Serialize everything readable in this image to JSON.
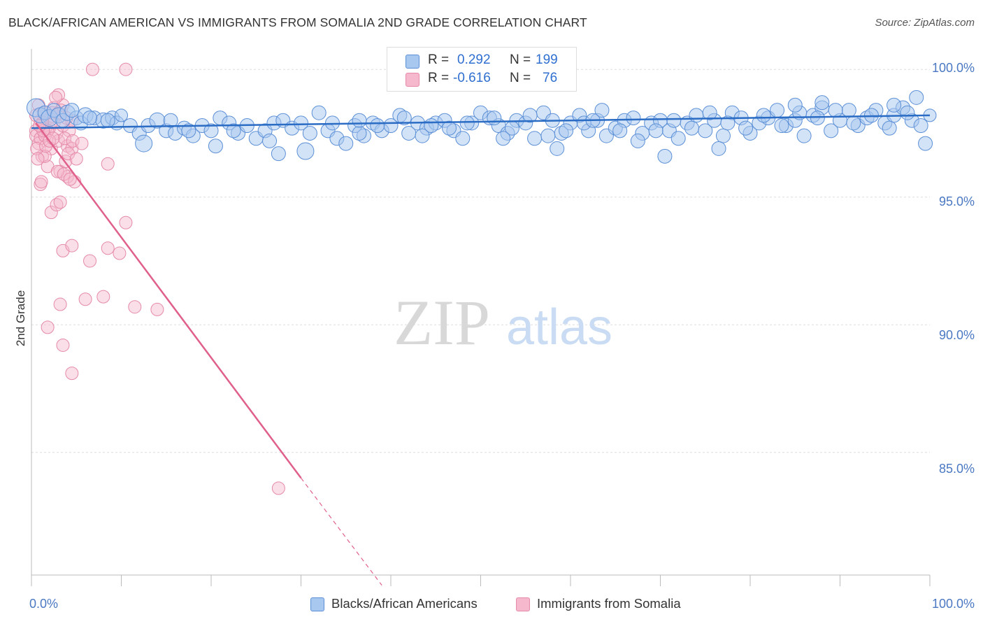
{
  "title": "BLACK/AFRICAN AMERICAN VS IMMIGRANTS FROM SOMALIA 2ND GRADE CORRELATION CHART",
  "source": "Source: ZipAtlas.com",
  "watermark": {
    "zip": "ZIP",
    "atlas": "atlas"
  },
  "colors": {
    "blue_fill": "#a8c8f0",
    "blue_stroke": "#5b8fd6",
    "blue_line": "#2b6cc4",
    "pink_fill": "#f5b8cc",
    "pink_stroke": "#e58aa8",
    "pink_line": "#e0608c",
    "axis_label": "#4a78c2",
    "grid": "#dddddd"
  },
  "stats": {
    "row1": {
      "r_label": "R =",
      "r_value": "0.292",
      "n_label": "N =",
      "n_value": "199"
    },
    "row2": {
      "r_label": "R =",
      "r_value": "-0.616",
      "n_label": "N =",
      "n_value": "76"
    }
  },
  "legend": {
    "series1": "Blacks/African Americans",
    "series2": "Immigrants from Somalia"
  },
  "chart_data": {
    "type": "scatter",
    "title": "BLACK/AFRICAN AMERICAN VS IMMIGRANTS FROM SOMALIA 2ND GRADE CORRELATION CHART",
    "xlabel": "",
    "ylabel": "2nd Grade",
    "xlim": [
      0,
      100
    ],
    "ylim": [
      80.2,
      100.8
    ],
    "x_tick_labels": [
      "0.0%",
      "100.0%"
    ],
    "y_ticks": [
      85,
      90,
      95,
      100
    ],
    "y_tick_labels": [
      "85.0%",
      "90.0%",
      "95.0%",
      "100.0%"
    ],
    "grid": true,
    "series": [
      {
        "name": "Blacks/African Americans",
        "color": "#5b8fd6",
        "trend": {
          "x": [
            0,
            100
          ],
          "y": [
            97.7,
            98.2
          ]
        },
        "points": [
          [
            0.5,
            98.5,
            13
          ],
          [
            1,
            98.2,
            11
          ],
          [
            1.5,
            98.3,
            10
          ],
          [
            2,
            98.1,
            12
          ],
          [
            2.5,
            98.4,
            10
          ],
          [
            3,
            98.2,
            11
          ],
          [
            3.5,
            98.0,
            10
          ],
          [
            4,
            98.3,
            11
          ],
          [
            5,
            98.1,
            10
          ],
          [
            5.5,
            97.9,
            10
          ],
          [
            6,
            98.2,
            11
          ],
          [
            7,
            98.1,
            10
          ],
          [
            8,
            98.0,
            11
          ],
          [
            9,
            98.1,
            10
          ],
          [
            9.5,
            97.9,
            10
          ],
          [
            10,
            98.2,
            9
          ],
          [
            11,
            97.8,
            10
          ],
          [
            12,
            97.5,
            10
          ],
          [
            13,
            97.8,
            10
          ],
          [
            14,
            98.0,
            11
          ],
          [
            15,
            97.6,
            10
          ],
          [
            16,
            97.5,
            10
          ],
          [
            17,
            97.7,
            10
          ],
          [
            18,
            97.4,
            10
          ],
          [
            19,
            97.8,
            10
          ],
          [
            20,
            97.6,
            10
          ],
          [
            21,
            98.1,
            10
          ],
          [
            22,
            97.9,
            10
          ],
          [
            23,
            97.5,
            10
          ],
          [
            24,
            97.8,
            10
          ],
          [
            25,
            97.3,
            10
          ],
          [
            26,
            97.6,
            10
          ],
          [
            27,
            97.9,
            10
          ],
          [
            28,
            98.0,
            10
          ],
          [
            29,
            97.7,
            10
          ],
          [
            30,
            97.9,
            10
          ],
          [
            31,
            97.5,
            10
          ],
          [
            32,
            98.3,
            10
          ],
          [
            33,
            97.6,
            10
          ],
          [
            34,
            97.3,
            10
          ],
          [
            35,
            97.1,
            10
          ],
          [
            36,
            97.8,
            10
          ],
          [
            37,
            97.4,
            10
          ],
          [
            38,
            97.9,
            10
          ],
          [
            39,
            97.6,
            10
          ],
          [
            40,
            97.8,
            10
          ],
          [
            41,
            98.2,
            10
          ],
          [
            42,
            97.5,
            10
          ],
          [
            43,
            97.9,
            10
          ],
          [
            44,
            97.7,
            10
          ],
          [
            45,
            97.9,
            10
          ],
          [
            46,
            98.0,
            10
          ],
          [
            47,
            97.6,
            10
          ],
          [
            48,
            97.3,
            10
          ],
          [
            49,
            97.9,
            10
          ],
          [
            50,
            98.3,
            10
          ],
          [
            51,
            98.1,
            10
          ],
          [
            52,
            97.8,
            10
          ],
          [
            53,
            97.5,
            10
          ],
          [
            54,
            98.0,
            10
          ],
          [
            55,
            97.9,
            10
          ],
          [
            56,
            97.3,
            10
          ],
          [
            57,
            98.3,
            10
          ],
          [
            58,
            98.0,
            10
          ],
          [
            59,
            97.5,
            10
          ],
          [
            60,
            97.9,
            10
          ],
          [
            61,
            98.2,
            10
          ],
          [
            62,
            97.6,
            10
          ],
          [
            63,
            98.0,
            10
          ],
          [
            64,
            97.4,
            10
          ],
          [
            65,
            97.7,
            10
          ],
          [
            66,
            98.0,
            10
          ],
          [
            67,
            98.1,
            10
          ],
          [
            68,
            97.5,
            10
          ],
          [
            69,
            97.9,
            10
          ],
          [
            70,
            98.0,
            10
          ],
          [
            71,
            97.6,
            10
          ],
          [
            72,
            97.3,
            10
          ],
          [
            73,
            97.9,
            10
          ],
          [
            74,
            98.2,
            10
          ],
          [
            75,
            97.6,
            10
          ],
          [
            76,
            98.0,
            10
          ],
          [
            77,
            97.4,
            10
          ],
          [
            78,
            98.3,
            10
          ],
          [
            79,
            98.1,
            10
          ],
          [
            80,
            97.5,
            10
          ],
          [
            81,
            97.9,
            10
          ],
          [
            82,
            98.1,
            10
          ],
          [
            83,
            98.4,
            10
          ],
          [
            84,
            97.8,
            10
          ],
          [
            85,
            98.0,
            10
          ],
          [
            86,
            97.4,
            10
          ],
          [
            87,
            98.2,
            10
          ],
          [
            88,
            98.5,
            10
          ],
          [
            89,
            97.6,
            10
          ],
          [
            90,
            98.0,
            10
          ],
          [
            91,
            98.4,
            10
          ],
          [
            92,
            97.8,
            10
          ],
          [
            93,
            98.1,
            10
          ],
          [
            94,
            98.4,
            10
          ],
          [
            95,
            97.9,
            10
          ],
          [
            96,
            98.2,
            10
          ],
          [
            97,
            98.5,
            10
          ],
          [
            98,
            98.0,
            10
          ],
          [
            99,
            97.8,
            10
          ],
          [
            100,
            98.2,
            9
          ],
          [
            4.5,
            98.4,
            10
          ],
          [
            6.5,
            98.1,
            10
          ],
          [
            8.5,
            98.0,
            10
          ],
          [
            12.5,
            97.1,
            12
          ],
          [
            15.5,
            98.0,
            10
          ],
          [
            17.5,
            97.6,
            10
          ],
          [
            22.5,
            97.6,
            10
          ],
          [
            26.5,
            97.2,
            10
          ],
          [
            30.5,
            96.8,
            12
          ],
          [
            33.5,
            97.9,
            10
          ],
          [
            36.5,
            97.5,
            10
          ],
          [
            38.5,
            97.8,
            10
          ],
          [
            41.5,
            98.1,
            10
          ],
          [
            43.5,
            97.4,
            10
          ],
          [
            46.5,
            97.7,
            10
          ],
          [
            48.5,
            97.9,
            10
          ],
          [
            51.5,
            98.1,
            10
          ],
          [
            53.5,
            97.7,
            10
          ],
          [
            55.5,
            98.2,
            10
          ],
          [
            57.5,
            97.4,
            10
          ],
          [
            59.5,
            97.6,
            10
          ],
          [
            61.5,
            97.9,
            10
          ],
          [
            63.5,
            98.4,
            10
          ],
          [
            65.5,
            97.6,
            10
          ],
          [
            67.5,
            97.2,
            10
          ],
          [
            69.5,
            97.6,
            10
          ],
          [
            71.5,
            98.0,
            10
          ],
          [
            73.5,
            97.7,
            10
          ],
          [
            75.5,
            98.3,
            10
          ],
          [
            77.5,
            97.9,
            10
          ],
          [
            79.5,
            97.7,
            10
          ],
          [
            81.5,
            98.2,
            10
          ],
          [
            83.5,
            97.8,
            10
          ],
          [
            85.5,
            98.3,
            10
          ],
          [
            87.5,
            98.1,
            10
          ],
          [
            89.5,
            98.4,
            10
          ],
          [
            91.5,
            97.9,
            10
          ],
          [
            93.5,
            98.2,
            10
          ],
          [
            95.5,
            97.7,
            10
          ],
          [
            97.5,
            98.3,
            10
          ],
          [
            99.5,
            97.1,
            10
          ],
          [
            27.5,
            96.7,
            10
          ],
          [
            20.5,
            97.0,
            10
          ],
          [
            44.5,
            97.8,
            10
          ],
          [
            58.5,
            96.9,
            10
          ],
          [
            70.5,
            96.6,
            10
          ],
          [
            76.5,
            96.9,
            10
          ],
          [
            52.5,
            97.3,
            10
          ],
          [
            36.5,
            98.0,
            10
          ],
          [
            62.5,
            98.0,
            10
          ],
          [
            85,
            98.6,
            10
          ],
          [
            88,
            98.7,
            10
          ],
          [
            96,
            98.6,
            10
          ],
          [
            98.5,
            98.9,
            10
          ]
        ]
      },
      {
        "name": "Immigrants from Somalia",
        "color": "#e58aa8",
        "trend": {
          "x": [
            0.5,
            30
          ],
          "y": [
            97.9,
            84.0
          ]
        },
        "trend_dashed": {
          "x": [
            30,
            39
          ],
          "y": [
            84.0,
            79.8
          ]
        },
        "points": [
          [
            0.5,
            98.2,
            9
          ],
          [
            0.5,
            97.6,
            9
          ],
          [
            0.5,
            97.4,
            9
          ],
          [
            0.8,
            97.1,
            9
          ],
          [
            1,
            98.0,
            9
          ],
          [
            1,
            97.3,
            9
          ],
          [
            1.2,
            96.6,
            9
          ],
          [
            1.5,
            97.8,
            9
          ],
          [
            1.5,
            97.4,
            9
          ],
          [
            1.8,
            96.2,
            9
          ],
          [
            2,
            98.1,
            9
          ],
          [
            2,
            97.7,
            9
          ],
          [
            2.2,
            96.9,
            9
          ],
          [
            2.5,
            98.5,
            9
          ],
          [
            2.5,
            97.9,
            9
          ],
          [
            2.8,
            97.5,
            9
          ],
          [
            3,
            98.3,
            9
          ],
          [
            3,
            97.2,
            9
          ],
          [
            3.2,
            96.0,
            9
          ],
          [
            3.5,
            98.6,
            9
          ],
          [
            3.5,
            97.8,
            9
          ],
          [
            3.8,
            96.4,
            9
          ],
          [
            4,
            97.0,
            9
          ],
          [
            4,
            95.8,
            9
          ],
          [
            4.2,
            97.6,
            9
          ],
          [
            4.5,
            98.0,
            9
          ],
          [
            4.5,
            96.9,
            9
          ],
          [
            4.8,
            95.6,
            9
          ],
          [
            1,
            95.5,
            9
          ],
          [
            1.5,
            96.6,
            9
          ],
          [
            2.2,
            94.4,
            9
          ],
          [
            2.8,
            94.7,
            9
          ],
          [
            3.2,
            94.8,
            9
          ],
          [
            3.5,
            92.9,
            9
          ],
          [
            4.5,
            93.1,
            9
          ],
          [
            6.5,
            92.5,
            9
          ],
          [
            8.5,
            93.0,
            9
          ],
          [
            9.8,
            92.8,
            9
          ],
          [
            10.5,
            94.0,
            9
          ],
          [
            3.2,
            90.8,
            9
          ],
          [
            6,
            91.0,
            9
          ],
          [
            8,
            91.1,
            9
          ],
          [
            11.5,
            90.7,
            9
          ],
          [
            14,
            90.6,
            9
          ],
          [
            1.8,
            89.9,
            9
          ],
          [
            3.5,
            89.2,
            9
          ],
          [
            4.5,
            88.1,
            9
          ],
          [
            27.5,
            83.6,
            9
          ],
          [
            6.8,
            100.0,
            9
          ],
          [
            10.5,
            100.0,
            9
          ],
          [
            0.8,
            98.6,
            9
          ],
          [
            1.2,
            97.9,
            9
          ],
          [
            1.8,
            97.6,
            9
          ],
          [
            2.3,
            98.3,
            9
          ],
          [
            3,
            99.0,
            9
          ],
          [
            3.3,
            98.4,
            9
          ],
          [
            3.7,
            97.3,
            9
          ],
          [
            4.1,
            96.7,
            9
          ],
          [
            4.6,
            97.2,
            9
          ],
          [
            5,
            96.5,
            9
          ],
          [
            5.6,
            97.1,
            9
          ],
          [
            8.5,
            96.3,
            9
          ],
          [
            1.3,
            97.6,
            9
          ],
          [
            2.7,
            98.9,
            9
          ],
          [
            0.6,
            96.9,
            9
          ],
          [
            2.9,
            96.0,
            9
          ],
          [
            3.9,
            98.1,
            9
          ],
          [
            1.6,
            97.0,
            9
          ],
          [
            2.0,
            97.2,
            9
          ],
          [
            0.9,
            97.8,
            9
          ],
          [
            1.4,
            98.3,
            9
          ],
          [
            2.4,
            97.3,
            9
          ],
          [
            3.6,
            95.9,
            9
          ],
          [
            4.3,
            95.7,
            9
          ],
          [
            0.7,
            96.5,
            9
          ],
          [
            1.1,
            95.6,
            9
          ]
        ]
      }
    ]
  }
}
